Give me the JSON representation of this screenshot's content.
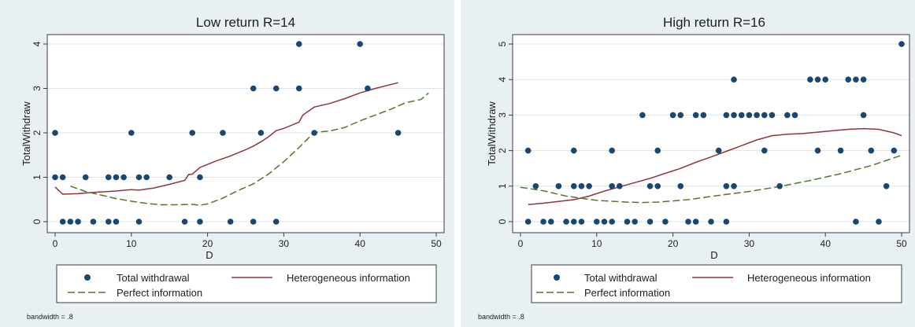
{
  "colors": {
    "panel_bg": "#e8f0f4",
    "plot_bg": "#ffffff",
    "frame": "#3c3c3c",
    "grid": "#dce6eb",
    "dots": "#1a476f",
    "hetero": "#90353b",
    "perfect": "#55752f"
  },
  "chart_data": [
    {
      "type": "scatter",
      "title": "Low return R=14",
      "xlabel": "D",
      "ylabel": "TotalWithdraw",
      "xlim": [
        0,
        50
      ],
      "ylim": [
        0,
        4
      ],
      "xticks": [
        0,
        10,
        20,
        30,
        40,
        50
      ],
      "yticks": [
        0,
        1,
        2,
        3,
        4
      ],
      "grid": true,
      "legend_position": "bottom",
      "legend": [
        "Total withdrawal",
        "Heterogeneous information",
        "Perfect information"
      ],
      "note": "bandwidth = .8",
      "series": [
        {
          "name": "Total withdrawal",
          "kind": "points",
          "x": [
            0,
            0,
            1,
            1,
            2,
            3,
            4,
            5,
            7,
            7,
            8,
            8,
            9,
            10,
            11,
            11,
            12,
            15,
            17,
            18,
            19,
            19,
            22,
            23,
            26,
            26,
            27,
            29,
            29,
            32,
            32,
            34,
            40,
            41,
            45
          ],
          "y": [
            2,
            1,
            1,
            0,
            0,
            0,
            1,
            0,
            0,
            1,
            0,
            1,
            1,
            2,
            1,
            0,
            1,
            1,
            0,
            2,
            1,
            0,
            2,
            0,
            3,
            0,
            2,
            3,
            0,
            4,
            3,
            2,
            4,
            3,
            2
          ]
        },
        {
          "name": "Heterogeneous information",
          "kind": "line",
          "x": [
            0,
            1,
            3,
            5,
            8,
            10,
            11,
            13,
            15,
            17,
            17.5,
            18,
            19,
            21,
            23,
            25,
            26,
            27,
            28,
            29,
            30,
            32,
            32.5,
            34,
            36,
            38,
            40,
            42,
            45
          ],
          "y": [
            0.78,
            0.62,
            0.63,
            0.66,
            0.69,
            0.72,
            0.71,
            0.76,
            0.84,
            0.93,
            1.06,
            1.07,
            1.22,
            1.36,
            1.48,
            1.62,
            1.7,
            1.8,
            1.91,
            2.05,
            2.1,
            2.24,
            2.4,
            2.58,
            2.66,
            2.77,
            2.9,
            3.0,
            3.13
          ]
        },
        {
          "name": "Perfect information",
          "kind": "line",
          "x": [
            2,
            4,
            6,
            8,
            10,
            12,
            14,
            16,
            18,
            19,
            20,
            22,
            24,
            26,
            28,
            30,
            32,
            34,
            36,
            38,
            40,
            42,
            44,
            46,
            48,
            49
          ],
          "y": [
            0.8,
            0.68,
            0.6,
            0.52,
            0.46,
            0.41,
            0.38,
            0.38,
            0.39,
            0.37,
            0.4,
            0.53,
            0.7,
            0.85,
            1.07,
            1.35,
            1.67,
            2.01,
            2.04,
            2.12,
            2.27,
            2.4,
            2.53,
            2.68,
            2.75,
            2.9
          ]
        }
      ]
    },
    {
      "type": "scatter",
      "title": "High return R=16",
      "xlabel": "D",
      "ylabel": "TotalWithdraw",
      "xlim": [
        0,
        50
      ],
      "ylim": [
        0,
        5
      ],
      "xticks": [
        0,
        10,
        20,
        30,
        40,
        50
      ],
      "yticks": [
        0,
        1,
        2,
        3,
        4,
        5
      ],
      "grid": true,
      "legend_position": "bottom",
      "legend": [
        "Total withdrawal",
        "Heterogeneous information",
        "Perfect information"
      ],
      "note": "bandwidth = .8",
      "series": [
        {
          "name": "Total withdrawal",
          "kind": "points",
          "x": [
            1,
            1,
            2,
            3,
            4,
            5,
            6,
            7,
            7,
            7,
            8,
            8,
            9,
            10,
            11,
            12,
            12,
            12,
            13,
            14,
            15,
            16,
            17,
            17,
            18,
            18,
            19,
            20,
            21,
            21,
            22,
            23,
            23,
            24,
            25,
            26,
            27,
            27,
            27,
            28,
            28,
            28,
            29,
            30,
            31,
            32,
            32,
            33,
            34,
            35,
            36,
            38,
            39,
            39,
            40,
            42,
            43,
            44,
            44,
            45,
            45,
            46,
            47,
            48,
            49,
            50
          ],
          "y": [
            2,
            0,
            1,
            0,
            0,
            1,
            0,
            2,
            1,
            0,
            1,
            0,
            1,
            0,
            0,
            2,
            1,
            0,
            1,
            0,
            0,
            3,
            1,
            0,
            2,
            1,
            0,
            3,
            3,
            1,
            0,
            3,
            0,
            3,
            0,
            2,
            3,
            1,
            0,
            4,
            3,
            1,
            3,
            3,
            3,
            2,
            3,
            3,
            1,
            3,
            3,
            4,
            4,
            2,
            4,
            2,
            4,
            4,
            0,
            4,
            3,
            2,
            0,
            1,
            2,
            5
          ]
        },
        {
          "name": "Heterogeneous information",
          "kind": "line",
          "x": [
            1,
            3,
            5,
            7,
            9,
            11,
            13,
            15,
            17,
            19,
            21,
            23,
            25,
            27,
            29,
            31,
            33,
            35,
            37,
            39,
            41,
            43,
            45,
            47,
            49,
            50
          ],
          "y": [
            0.48,
            0.52,
            0.57,
            0.62,
            0.72,
            0.86,
            0.98,
            1.1,
            1.22,
            1.36,
            1.5,
            1.67,
            1.82,
            1.98,
            2.14,
            2.3,
            2.42,
            2.46,
            2.48,
            2.52,
            2.56,
            2.6,
            2.62,
            2.6,
            2.5,
            2.42
          ]
        },
        {
          "name": "Perfect information",
          "kind": "line",
          "x": [
            0,
            3,
            6,
            10,
            14,
            16,
            18,
            22,
            26,
            30,
            34,
            38,
            42,
            46,
            50
          ],
          "y": [
            0.97,
            0.87,
            0.72,
            0.6,
            0.55,
            0.54,
            0.55,
            0.62,
            0.74,
            0.85,
            0.99,
            1.16,
            1.35,
            1.58,
            1.87
          ]
        }
      ]
    }
  ]
}
